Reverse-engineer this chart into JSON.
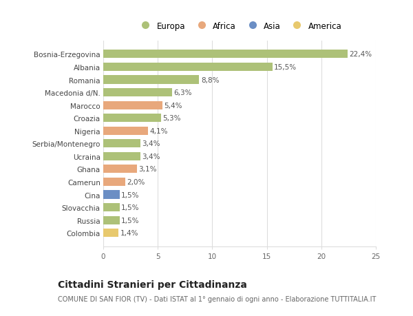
{
  "categories": [
    "Bosnia-Erzegovina",
    "Albania",
    "Romania",
    "Macedonia d/N.",
    "Marocco",
    "Croazia",
    "Nigeria",
    "Serbia/Montenegro",
    "Ucraina",
    "Ghana",
    "Camerun",
    "Cina",
    "Slovacchia",
    "Russia",
    "Colombia"
  ],
  "values": [
    22.4,
    15.5,
    8.8,
    6.3,
    5.4,
    5.3,
    4.1,
    3.4,
    3.4,
    3.1,
    2.0,
    1.5,
    1.5,
    1.5,
    1.4
  ],
  "labels": [
    "22,4%",
    "15,5%",
    "8,8%",
    "6,3%",
    "5,4%",
    "5,3%",
    "4,1%",
    "3,4%",
    "3,4%",
    "3,1%",
    "2,0%",
    "1,5%",
    "1,5%",
    "1,5%",
    "1,4%"
  ],
  "colors": [
    "#adc178",
    "#adc178",
    "#adc178",
    "#adc178",
    "#e8a87c",
    "#adc178",
    "#e8a87c",
    "#adc178",
    "#adc178",
    "#e8a87c",
    "#e8a87c",
    "#6b8ec4",
    "#adc178",
    "#adc178",
    "#e8c96e"
  ],
  "legend_labels": [
    "Europa",
    "Africa",
    "Asia",
    "America"
  ],
  "legend_colors": [
    "#adc178",
    "#e8a87c",
    "#6b8ec4",
    "#e8c96e"
  ],
  "title": "Cittadini Stranieri per Cittadinanza",
  "subtitle": "COMUNE DI SAN FIOR (TV) - Dati ISTAT al 1° gennaio di ogni anno - Elaborazione TUTTITALIA.IT",
  "xlim": [
    0,
    25
  ],
  "xticks": [
    0,
    5,
    10,
    15,
    20,
    25
  ],
  "bg_color": "#ffffff",
  "grid_color": "#dddddd",
  "bar_height": 0.65,
  "label_fontsize": 7.5,
  "tick_fontsize": 7.5,
  "title_fontsize": 10,
  "subtitle_fontsize": 7
}
